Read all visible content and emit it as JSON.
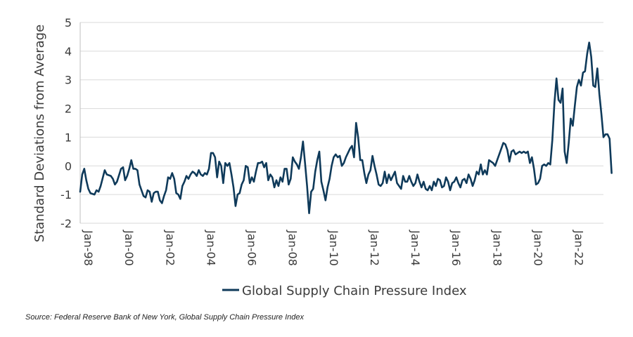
{
  "chart_data": {
    "type": "line",
    "title": "",
    "ylabel": "Standard Deviations from Average",
    "xlabel": "",
    "ylim": [
      -2,
      5
    ],
    "yticks": [
      "5",
      "4",
      "3",
      "2",
      "1",
      "0",
      "-1",
      "-2"
    ],
    "ytick_values": [
      5,
      4,
      3,
      2,
      1,
      0,
      -1,
      -2
    ],
    "xtick_labels": [
      "Jan-98",
      "Jan-00",
      "Jan-02",
      "Jan-04",
      "Jan-06",
      "Jan-08",
      "Jan-10",
      "Jan-12",
      "Jan-14",
      "Jan-16",
      "Jan-18",
      "Jan-20",
      "Jan-22"
    ],
    "xtick_years": [
      1998,
      2000,
      2002,
      2004,
      2006,
      2008,
      2010,
      2012,
      2014,
      2016,
      2018,
      2020,
      2022
    ],
    "x_start": 1998.0,
    "x_end": 2023.6,
    "grid": "horizontal",
    "legend_position": "bottom",
    "line_color": "#0f3a5a",
    "series": [
      {
        "name": "Global Supply Chain Pressure Index",
        "points": [
          [
            1998.0,
            -0.9
          ],
          [
            1998.1,
            -0.3
          ],
          [
            1998.2,
            -0.1
          ],
          [
            1998.3,
            -0.5
          ],
          [
            1998.4,
            -0.8
          ],
          [
            1998.5,
            -0.95
          ],
          [
            1998.7,
            -1.0
          ],
          [
            1998.8,
            -0.85
          ],
          [
            1998.9,
            -0.9
          ],
          [
            1999.0,
            -0.7
          ],
          [
            1999.2,
            -0.15
          ],
          [
            1999.3,
            -0.3
          ],
          [
            1999.5,
            -0.35
          ],
          [
            1999.6,
            -0.45
          ],
          [
            1999.7,
            -0.65
          ],
          [
            1999.8,
            -0.55
          ],
          [
            2000.0,
            -0.1
          ],
          [
            2000.1,
            -0.05
          ],
          [
            2000.2,
            -0.5
          ],
          [
            2000.3,
            -0.35
          ],
          [
            2000.4,
            -0.1
          ],
          [
            2000.5,
            0.2
          ],
          [
            2000.6,
            -0.1
          ],
          [
            2000.7,
            -0.1
          ],
          [
            2000.8,
            -0.15
          ],
          [
            2000.9,
            -0.65
          ],
          [
            2001.0,
            -0.85
          ],
          [
            2001.1,
            -1.05
          ],
          [
            2001.2,
            -1.1
          ],
          [
            2001.3,
            -0.85
          ],
          [
            2001.4,
            -0.9
          ],
          [
            2001.5,
            -1.25
          ],
          [
            2001.6,
            -0.95
          ],
          [
            2001.7,
            -0.9
          ],
          [
            2001.8,
            -0.9
          ],
          [
            2001.9,
            -1.2
          ],
          [
            2002.0,
            -1.3
          ],
          [
            2002.1,
            -1.05
          ],
          [
            2002.2,
            -0.85
          ],
          [
            2002.3,
            -0.4
          ],
          [
            2002.4,
            -0.45
          ],
          [
            2002.5,
            -0.25
          ],
          [
            2002.6,
            -0.45
          ],
          [
            2002.7,
            -0.95
          ],
          [
            2002.8,
            -1.0
          ],
          [
            2002.9,
            -1.15
          ],
          [
            2003.0,
            -0.7
          ],
          [
            2003.1,
            -0.55
          ],
          [
            2003.2,
            -0.35
          ],
          [
            2003.3,
            -0.45
          ],
          [
            2003.4,
            -0.3
          ],
          [
            2003.5,
            -0.2
          ],
          [
            2003.6,
            -0.25
          ],
          [
            2003.7,
            -0.35
          ],
          [
            2003.8,
            -0.15
          ],
          [
            2003.9,
            -0.3
          ],
          [
            2004.0,
            -0.35
          ],
          [
            2004.1,
            -0.25
          ],
          [
            2004.2,
            -0.3
          ],
          [
            2004.3,
            -0.1
          ],
          [
            2004.4,
            0.45
          ],
          [
            2004.5,
            0.45
          ],
          [
            2004.6,
            0.3
          ],
          [
            2004.7,
            -0.4
          ],
          [
            2004.8,
            0.15
          ],
          [
            2004.9,
            0.0
          ],
          [
            2005.0,
            -0.6
          ],
          [
            2005.1,
            0.1
          ],
          [
            2005.2,
            0.0
          ],
          [
            2005.3,
            0.1
          ],
          [
            2005.4,
            -0.3
          ],
          [
            2005.5,
            -0.75
          ],
          [
            2005.6,
            -1.4
          ],
          [
            2005.7,
            -1.0
          ],
          [
            2005.8,
            -0.95
          ],
          [
            2005.9,
            -0.65
          ],
          [
            2006.0,
            -0.5
          ],
          [
            2006.1,
            0.0
          ],
          [
            2006.2,
            -0.05
          ],
          [
            2006.3,
            -0.6
          ],
          [
            2006.4,
            -0.4
          ],
          [
            2006.5,
            -0.55
          ],
          [
            2006.6,
            -0.2
          ],
          [
            2006.7,
            0.1
          ],
          [
            2006.8,
            0.1
          ],
          [
            2006.9,
            0.15
          ],
          [
            2007.0,
            -0.05
          ],
          [
            2007.1,
            0.1
          ],
          [
            2007.2,
            -0.5
          ],
          [
            2007.3,
            -0.3
          ],
          [
            2007.4,
            -0.4
          ],
          [
            2007.5,
            -0.75
          ],
          [
            2007.6,
            -0.5
          ],
          [
            2007.7,
            -0.7
          ],
          [
            2007.8,
            -0.4
          ],
          [
            2007.9,
            -0.55
          ],
          [
            2008.0,
            -0.1
          ],
          [
            2008.1,
            -0.1
          ],
          [
            2008.2,
            -0.65
          ],
          [
            2008.3,
            -0.45
          ],
          [
            2008.4,
            0.3
          ],
          [
            2008.5,
            0.15
          ],
          [
            2008.6,
            0.05
          ],
          [
            2008.7,
            -0.1
          ],
          [
            2008.8,
            0.3
          ],
          [
            2008.9,
            0.85
          ],
          [
            2009.0,
            0.1
          ],
          [
            2009.1,
            -0.7
          ],
          [
            2009.2,
            -1.65
          ],
          [
            2009.3,
            -0.9
          ],
          [
            2009.4,
            -0.8
          ],
          [
            2009.5,
            -0.2
          ],
          [
            2009.6,
            0.2
          ],
          [
            2009.7,
            0.5
          ],
          [
            2009.8,
            -0.55
          ],
          [
            2009.9,
            -0.85
          ],
          [
            2010.0,
            -1.2
          ],
          [
            2010.1,
            -0.75
          ],
          [
            2010.2,
            -0.45
          ],
          [
            2010.3,
            0.0
          ],
          [
            2010.4,
            0.3
          ],
          [
            2010.5,
            0.4
          ],
          [
            2010.6,
            0.3
          ],
          [
            2010.7,
            0.35
          ],
          [
            2010.8,
            0.0
          ],
          [
            2010.9,
            0.1
          ],
          [
            2011.0,
            0.3
          ],
          [
            2011.1,
            0.45
          ],
          [
            2011.2,
            0.6
          ],
          [
            2011.3,
            0.7
          ],
          [
            2011.4,
            0.3
          ],
          [
            2011.5,
            1.5
          ],
          [
            2011.6,
            1.0
          ],
          [
            2011.7,
            0.2
          ],
          [
            2011.8,
            0.2
          ],
          [
            2011.9,
            -0.25
          ],
          [
            2012.0,
            -0.6
          ],
          [
            2012.1,
            -0.3
          ],
          [
            2012.2,
            -0.15
          ],
          [
            2012.3,
            0.35
          ],
          [
            2012.4,
            0.0
          ],
          [
            2012.5,
            -0.3
          ],
          [
            2012.6,
            -0.65
          ],
          [
            2012.7,
            -0.7
          ],
          [
            2012.8,
            -0.6
          ],
          [
            2012.9,
            -0.2
          ],
          [
            2013.0,
            -0.6
          ],
          [
            2013.1,
            -0.3
          ],
          [
            2013.2,
            -0.5
          ],
          [
            2013.3,
            -0.35
          ],
          [
            2013.4,
            -0.2
          ],
          [
            2013.5,
            -0.6
          ],
          [
            2013.6,
            -0.7
          ],
          [
            2013.7,
            -0.8
          ],
          [
            2013.8,
            -0.35
          ],
          [
            2013.9,
            -0.55
          ],
          [
            2014.0,
            -0.55
          ],
          [
            2014.1,
            -0.35
          ],
          [
            2014.2,
            -0.55
          ],
          [
            2014.3,
            -0.7
          ],
          [
            2014.4,
            -0.6
          ],
          [
            2014.5,
            -0.3
          ],
          [
            2014.6,
            -0.55
          ],
          [
            2014.7,
            -0.75
          ],
          [
            2014.8,
            -0.55
          ],
          [
            2014.9,
            -0.8
          ],
          [
            2015.0,
            -0.85
          ],
          [
            2015.1,
            -0.7
          ],
          [
            2015.2,
            -0.85
          ],
          [
            2015.3,
            -0.55
          ],
          [
            2015.4,
            -0.7
          ],
          [
            2015.5,
            -0.45
          ],
          [
            2015.6,
            -0.5
          ],
          [
            2015.7,
            -0.75
          ],
          [
            2015.8,
            -0.7
          ],
          [
            2015.9,
            -0.4
          ],
          [
            2016.0,
            -0.55
          ],
          [
            2016.1,
            -0.85
          ],
          [
            2016.2,
            -0.6
          ],
          [
            2016.3,
            -0.55
          ],
          [
            2016.4,
            -0.4
          ],
          [
            2016.5,
            -0.6
          ],
          [
            2016.6,
            -0.75
          ],
          [
            2016.7,
            -0.5
          ],
          [
            2016.8,
            -0.45
          ],
          [
            2016.9,
            -0.6
          ],
          [
            2017.0,
            -0.3
          ],
          [
            2017.1,
            -0.45
          ],
          [
            2017.2,
            -0.7
          ],
          [
            2017.3,
            -0.5
          ],
          [
            2017.4,
            -0.2
          ],
          [
            2017.5,
            -0.3
          ],
          [
            2017.6,
            0.05
          ],
          [
            2017.7,
            -0.3
          ],
          [
            2017.8,
            -0.15
          ],
          [
            2017.9,
            -0.3
          ],
          [
            2018.0,
            0.2
          ],
          [
            2018.1,
            0.15
          ],
          [
            2018.2,
            0.1
          ],
          [
            2018.3,
            0.0
          ],
          [
            2018.4,
            0.2
          ],
          [
            2018.5,
            0.4
          ],
          [
            2018.6,
            0.6
          ],
          [
            2018.7,
            0.8
          ],
          [
            2018.8,
            0.75
          ],
          [
            2018.9,
            0.55
          ],
          [
            2019.0,
            0.15
          ],
          [
            2019.1,
            0.5
          ],
          [
            2019.2,
            0.55
          ],
          [
            2019.3,
            0.4
          ],
          [
            2019.4,
            0.45
          ],
          [
            2019.5,
            0.5
          ],
          [
            2019.6,
            0.45
          ],
          [
            2019.7,
            0.5
          ],
          [
            2019.8,
            0.45
          ],
          [
            2019.9,
            0.5
          ],
          [
            2020.0,
            0.1
          ],
          [
            2020.1,
            0.3
          ],
          [
            2020.2,
            -0.1
          ],
          [
            2020.3,
            -0.65
          ],
          [
            2020.4,
            -0.6
          ],
          [
            2020.5,
            -0.45
          ],
          [
            2020.6,
            0.0
          ],
          [
            2020.7,
            0.05
          ],
          [
            2020.8,
            0.0
          ],
          [
            2020.9,
            0.1
          ],
          [
            2021.0,
            0.05
          ],
          [
            2021.1,
            0.9
          ],
          [
            2021.2,
            2.2
          ],
          [
            2021.3,
            3.05
          ],
          [
            2021.4,
            2.3
          ],
          [
            2021.5,
            2.2
          ],
          [
            2021.6,
            2.7
          ],
          [
            2021.7,
            0.5
          ],
          [
            2021.8,
            0.1
          ],
          [
            2021.9,
            0.8
          ],
          [
            2022.0,
            1.65
          ],
          [
            2022.1,
            1.4
          ],
          [
            2022.2,
            2.1
          ],
          [
            2022.3,
            2.75
          ],
          [
            2022.4,
            3.0
          ],
          [
            2022.5,
            2.8
          ],
          [
            2022.6,
            3.25
          ],
          [
            2022.7,
            3.3
          ],
          [
            2022.8,
            3.9
          ],
          [
            2022.9,
            4.3
          ],
          [
            2023.0,
            3.8
          ],
          [
            2023.1,
            2.8
          ],
          [
            2023.2,
            2.75
          ],
          [
            2023.3,
            3.4
          ],
          [
            2023.4,
            2.5
          ],
          [
            2023.5,
            1.8
          ],
          [
            2023.6,
            1.0
          ],
          [
            2023.7,
            1.1
          ],
          [
            2023.8,
            1.1
          ],
          [
            2023.9,
            0.95
          ],
          [
            2024.0,
            -0.25
          ]
        ]
      }
    ]
  },
  "legend": {
    "label": "Global Supply Chain Pressure Index"
  },
  "source": {
    "text": "Source: Federal Reserve Bank of New York, Global Supply Chain Pressure Index"
  }
}
